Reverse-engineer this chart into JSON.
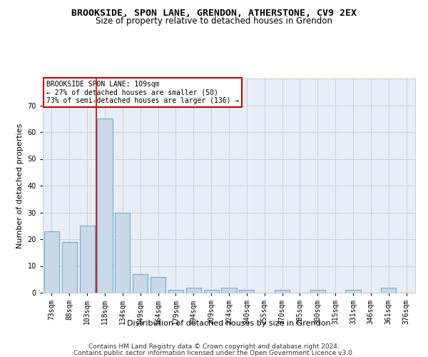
{
  "title": "BROOKSIDE, SPON LANE, GRENDON, ATHERSTONE, CV9 2EX",
  "subtitle": "Size of property relative to detached houses in Grendon",
  "xlabel": "Distribution of detached houses by size in Grendon",
  "ylabel": "Number of detached properties",
  "footer1": "Contains HM Land Registry data © Crown copyright and database right 2024.",
  "footer2": "Contains public sector information licensed under the Open Government Licence v3.0.",
  "categories": [
    "73sqm",
    "88sqm",
    "103sqm",
    "118sqm",
    "134sqm",
    "149sqm",
    "164sqm",
    "179sqm",
    "194sqm",
    "209sqm",
    "224sqm",
    "240sqm",
    "255sqm",
    "270sqm",
    "285sqm",
    "300sqm",
    "315sqm",
    "331sqm",
    "346sqm",
    "361sqm",
    "376sqm"
  ],
  "values": [
    23,
    19,
    25,
    65,
    30,
    7,
    6,
    1,
    2,
    1,
    2,
    1,
    0,
    1,
    0,
    1,
    0,
    1,
    0,
    2,
    0
  ],
  "bar_color": "#c9d9e8",
  "bar_edge_color": "#7aaac8",
  "red_line_color": "#cc0000",
  "annotation_text": "BROOKSIDE SPON LANE: 109sqm\n← 27% of detached houses are smaller (50)\n73% of semi-detached houses are larger (136) →",
  "annotation_box_color": "#ffffff",
  "annotation_box_edge": "#cc0000",
  "ylim": [
    0,
    80
  ],
  "yticks": [
    0,
    10,
    20,
    30,
    40,
    50,
    60,
    70,
    80
  ],
  "grid_color": "#c8d0dc",
  "bg_color": "#e8eef5",
  "title_fontsize": 9.5,
  "subtitle_fontsize": 8.5,
  "axis_label_fontsize": 8,
  "tick_fontsize": 7,
  "footer_fontsize": 6.5,
  "red_line_index": 2.5
}
